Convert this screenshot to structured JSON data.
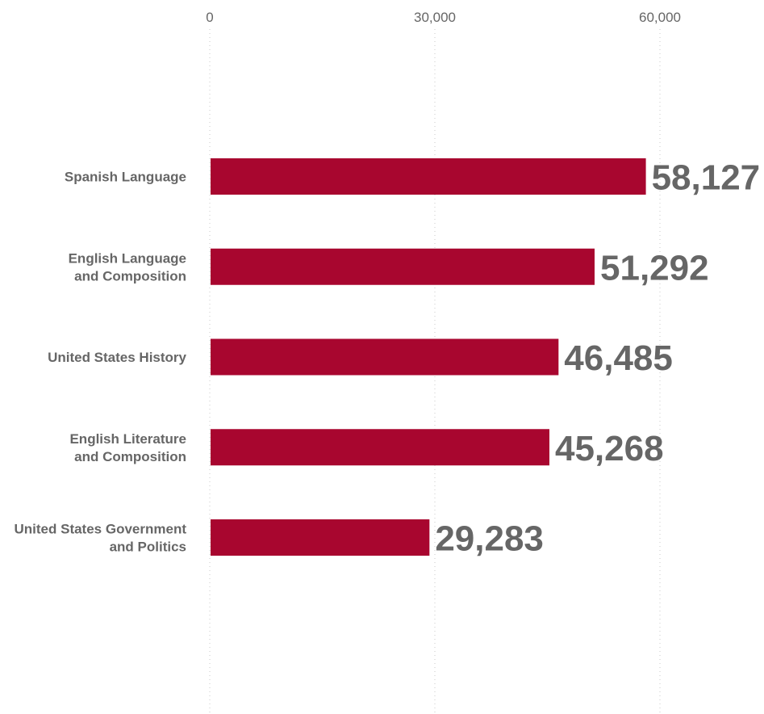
{
  "chart_data": {
    "type": "bar",
    "orientation": "horizontal",
    "title": "",
    "xlabel": "",
    "ylabel": "",
    "xlim": [
      0,
      60000
    ],
    "x_ticks": [
      0,
      30000,
      60000
    ],
    "x_tick_labels": [
      "0",
      "30,000",
      "60,000"
    ],
    "grid": true,
    "categories": [
      [
        "Spanish Language"
      ],
      [
        "English Language",
        "and Composition"
      ],
      [
        "United States History"
      ],
      [
        "English Literature",
        "and Composition"
      ],
      [
        "United States Government",
        "and Politics"
      ]
    ],
    "values": [
      58127,
      51292,
      46485,
      45268,
      29283
    ],
    "value_labels": [
      "58,127",
      "51,292",
      "46,485",
      "45,268",
      "29,283"
    ],
    "bar_color": "#a8062f",
    "text_color": "#666666",
    "legend": "none"
  }
}
